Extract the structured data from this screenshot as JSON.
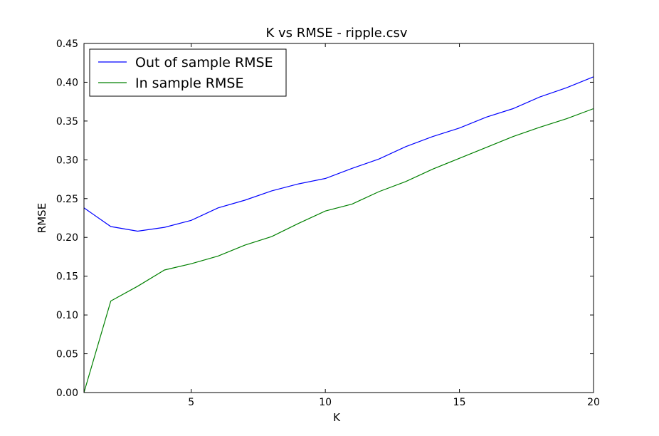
{
  "chart_data": {
    "type": "line",
    "title": "K vs RMSE - ripple.csv",
    "xlabel": "K",
    "ylabel": "RMSE",
    "xlim": [
      1,
      20
    ],
    "ylim": [
      0,
      0.45
    ],
    "xticks": [
      5,
      10,
      15,
      20
    ],
    "xtick_labels": [
      "5",
      "10",
      "15",
      "20"
    ],
    "yticks": [
      0,
      0.05,
      0.1,
      0.15,
      0.2,
      0.25,
      0.3,
      0.35,
      0.4,
      0.45
    ],
    "ytick_labels": [
      "0.00",
      "0.05",
      "0.10",
      "0.15",
      "0.20",
      "0.25",
      "0.30",
      "0.35",
      "0.40",
      "0.45"
    ],
    "grid": false,
    "legend_position": "upper-left",
    "x": [
      1,
      2,
      3,
      4,
      5,
      6,
      7,
      8,
      9,
      10,
      11,
      12,
      13,
      14,
      15,
      16,
      17,
      18,
      19,
      20
    ],
    "series": [
      {
        "name": "Out of sample RMSE",
        "color": "#0000ff",
        "values": [
          0.238,
          0.214,
          0.208,
          0.213,
          0.222,
          0.238,
          0.248,
          0.26,
          0.269,
          0.276,
          0.289,
          0.301,
          0.317,
          0.33,
          0.341,
          0.355,
          0.366,
          0.381,
          0.393,
          0.407
        ]
      },
      {
        "name": "In sample RMSE",
        "color": "#008000",
        "values": [
          0.0,
          0.118,
          0.137,
          0.158,
          0.166,
          0.176,
          0.19,
          0.201,
          0.218,
          0.234,
          0.243,
          0.259,
          0.272,
          0.288,
          0.302,
          0.316,
          0.33,
          0.342,
          0.353,
          0.366
        ]
      }
    ]
  }
}
